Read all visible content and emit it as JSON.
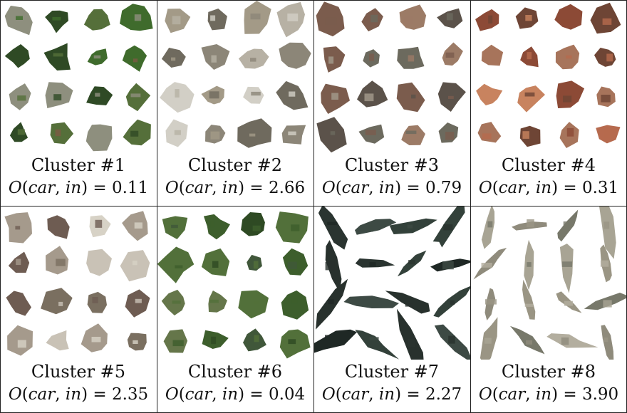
{
  "clusters": [
    {
      "name": "Cluster #1",
      "value": "0.11",
      "palette": [
        "#3f6b2c",
        "#556f3a",
        "#7c5a44",
        "#2f4a25",
        "#8e8f7e"
      ]
    },
    {
      "name": "Cluster #2",
      "value": "2.66",
      "palette": [
        "#b7b1a4",
        "#8c8678",
        "#d2cfc6",
        "#6f6a5e",
        "#a39a87"
      ]
    },
    {
      "name": "Cluster #3",
      "value": "0.79",
      "palette": [
        "#7b5c4d",
        "#a49b8c",
        "#5b524a",
        "#9c7b66",
        "#6c6a5e"
      ]
    },
    {
      "name": "Cluster #4",
      "value": "0.31",
      "palette": [
        "#b66a4e",
        "#c8835f",
        "#8c4a36",
        "#a7745b",
        "#6e4535"
      ]
    },
    {
      "name": "Cluster #5",
      "value": "2.35",
      "palette": [
        "#a59a8c",
        "#6e5c52",
        "#c9c2b6",
        "#7a6f60",
        "#d7d2c6"
      ]
    },
    {
      "name": "Cluster #6",
      "value": "0.04",
      "palette": [
        "#3d5e2c",
        "#2e4a23",
        "#52703a",
        "#65764a",
        "#40573a"
      ]
    },
    {
      "name": "Cluster #7",
      "value": "2.27",
      "palette": [
        "#2a3430",
        "#33413a",
        "#1f2825",
        "#3d4a44",
        "#28312d"
      ]
    },
    {
      "name": "Cluster #8",
      "value": "3.90",
      "palette": [
        "#8f8b7c",
        "#a8a494",
        "#77786a",
        "#9a9584",
        "#b3ae9f"
      ]
    }
  ],
  "formula": {
    "prefix": "O(car, in) = "
  }
}
